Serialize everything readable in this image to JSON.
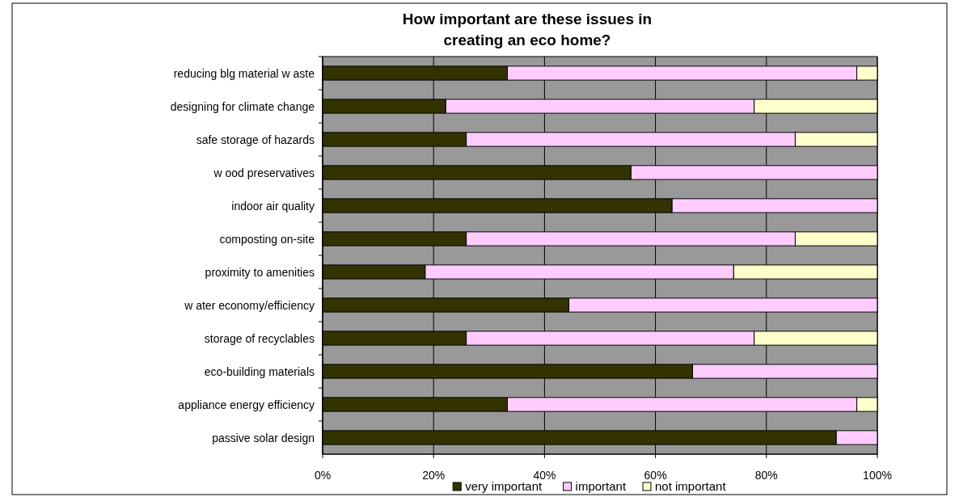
{
  "chart_data": {
    "type": "bar",
    "orientation": "horizontal",
    "stacked": true,
    "title": "How important are these issues in creating an eco home?",
    "categories": [
      "reducing blg material w aste",
      "designing for climate change",
      "safe storage of hazards",
      "w ood preservatives",
      "indoor air quality",
      "composting on-site",
      "proximity to amenities",
      "w ater economy/efficiency",
      "storage of recyclables",
      "eco-building materials",
      "appliance energy efficiency",
      "passive solar design"
    ],
    "series": [
      {
        "name": "very important",
        "color": "#333300",
        "values": [
          33.3,
          22.2,
          25.9,
          55.6,
          63.0,
          25.9,
          18.5,
          44.4,
          25.9,
          66.7,
          33.3,
          92.6
        ]
      },
      {
        "name": "important",
        "color": "#ffccff",
        "values": [
          63.0,
          55.6,
          59.3,
          44.4,
          37.0,
          59.3,
          55.6,
          55.6,
          51.9,
          33.3,
          63.0,
          7.4
        ]
      },
      {
        "name": "not important",
        "color": "#ffffcc",
        "values": [
          3.7,
          22.2,
          14.8,
          0,
          0,
          14.8,
          25.9,
          0,
          22.2,
          0,
          3.7,
          0
        ]
      }
    ],
    "xlim": [
      0,
      100
    ],
    "xticks": [
      {
        "value": 0,
        "label": "0%"
      },
      {
        "value": 20,
        "label": "20%"
      },
      {
        "value": 40,
        "label": "40%"
      },
      {
        "value": 60,
        "label": "60%"
      },
      {
        "value": 80,
        "label": "80%"
      },
      {
        "value": 100,
        "label": "100%"
      }
    ],
    "grid": "x",
    "legend": "bottom"
  }
}
